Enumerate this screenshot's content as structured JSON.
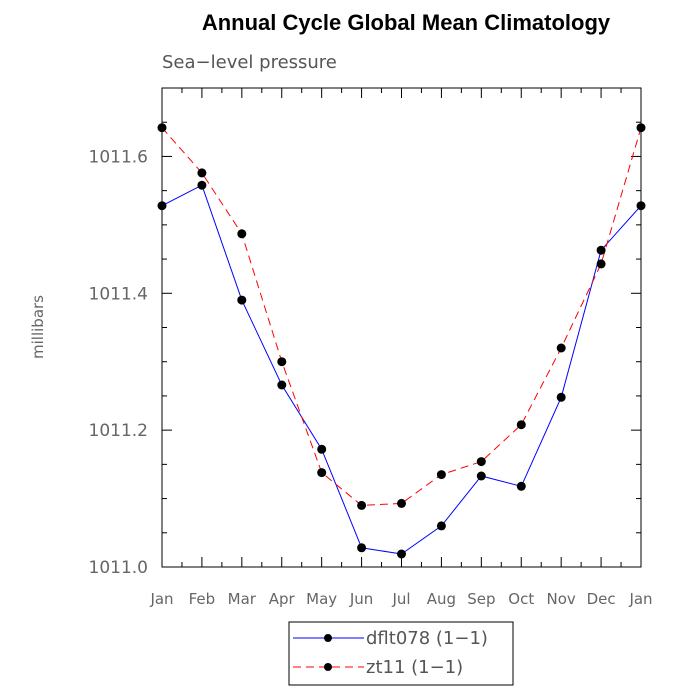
{
  "chart_data": {
    "type": "line",
    "title": "Annual Cycle Global Mean Climatology",
    "subtitle": "Sea−level pressure",
    "xlabel": "",
    "ylabel": "millibars",
    "categories": [
      "Jan",
      "Feb",
      "Mar",
      "Apr",
      "May",
      "Jun",
      "Jul",
      "Aug",
      "Sep",
      "Oct",
      "Nov",
      "Dec",
      "Jan"
    ],
    "ylim": [
      1011.0,
      1011.7
    ],
    "yticks": [
      1011.0,
      1011.2,
      1011.4,
      1011.6
    ],
    "ytick_labels": [
      "1011.0",
      "1011.2",
      "1011.4",
      "1011.6"
    ],
    "legend_position": "bottom-center",
    "series": [
      {
        "name": "dflt078 (1−1)",
        "color": "#0000ff",
        "style": "solid",
        "values": [
          1011.528,
          1011.558,
          1011.39,
          1011.266,
          1011.172,
          1011.028,
          1011.019,
          1011.06,
          1011.133,
          1011.118,
          1011.248,
          1011.463,
          1011.528
        ]
      },
      {
        "name": "zt11 (1−1)",
        "color": "#ff0000",
        "style": "dashed",
        "values": [
          1011.642,
          1011.576,
          1011.487,
          1011.3,
          1011.138,
          1011.09,
          1011.093,
          1011.135,
          1011.154,
          1011.208,
          1011.32,
          1011.443,
          1011.642
        ]
      }
    ]
  }
}
